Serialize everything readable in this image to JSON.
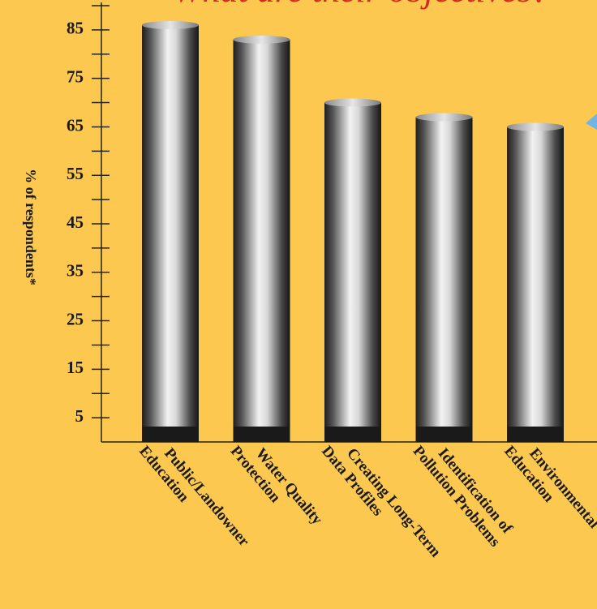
{
  "chart_data": {
    "type": "bar",
    "title": "What are their objectives?",
    "y_label": "% of respondents*",
    "categories": [
      "Public/Landowner\nEducation",
      "Water Quality\nProtection",
      "Creating Long-Term\nData Profiles",
      "Identification of\nPollution Problems",
      "Environmental\nEducation"
    ],
    "values": [
      86,
      83,
      70,
      67,
      65
    ],
    "color": "#9a9a9a",
    "ylim": [
      0,
      90
    ],
    "yticks": [
      5,
      15,
      25,
      35,
      45,
      55,
      65,
      75,
      85
    ],
    "yminorticks": [
      10,
      20,
      30,
      40,
      50,
      60,
      70,
      80,
      90
    ]
  }
}
